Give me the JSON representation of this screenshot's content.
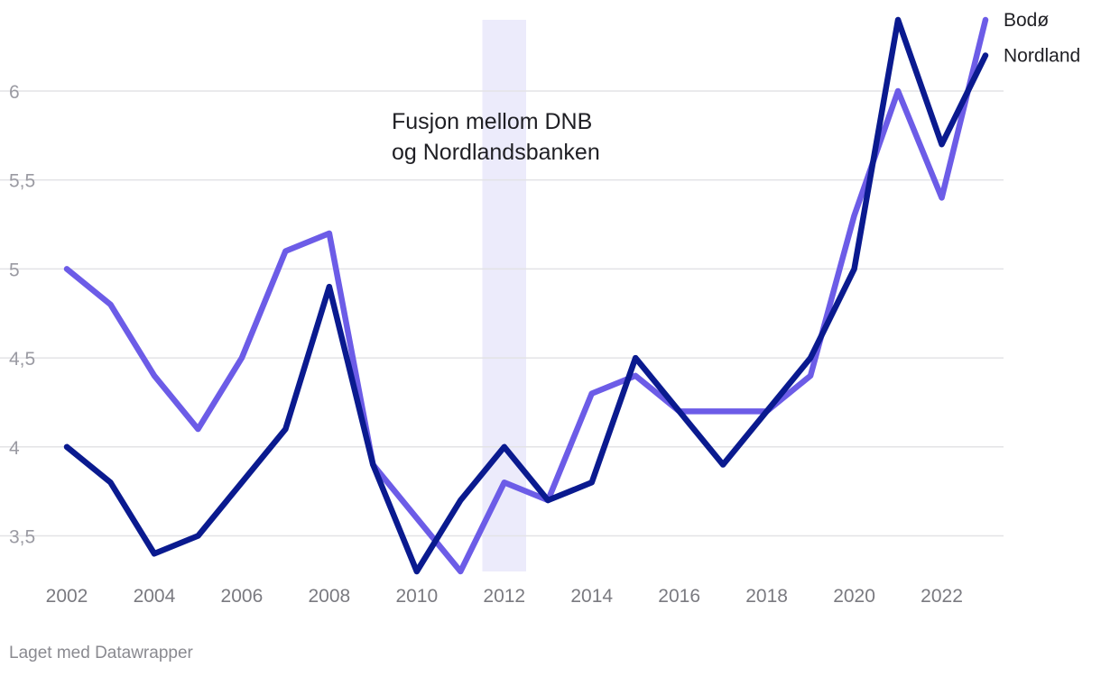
{
  "chart_data": {
    "type": "line",
    "title": "",
    "xlabel": "",
    "ylabel": "",
    "x": [
      2002,
      2003,
      2004,
      2005,
      2006,
      2007,
      2008,
      2009,
      2010,
      2011,
      2012,
      2013,
      2014,
      2015,
      2016,
      2017,
      2018,
      2019,
      2020,
      2021,
      2022,
      2023
    ],
    "x_ticks": [
      "2002",
      "2004",
      "2006",
      "2008",
      "2010",
      "2012",
      "2014",
      "2016",
      "2018",
      "2020",
      "2022"
    ],
    "y_ticks": [
      "3,5",
      "4",
      "4,5",
      "5",
      "5,5",
      "6"
    ],
    "y_tick_values": [
      3.5,
      4,
      4.5,
      5,
      5.5,
      6
    ],
    "ylim": [
      3.3,
      6.4
    ],
    "xlim": [
      2002,
      2023
    ],
    "grid": true,
    "series": [
      {
        "name": "Bodø",
        "color": "#6c5ce7",
        "values": [
          5.0,
          4.8,
          4.4,
          4.1,
          4.5,
          5.1,
          5.2,
          3.9,
          3.6,
          3.3,
          3.8,
          3.7,
          4.3,
          4.4,
          4.2,
          4.2,
          4.2,
          4.4,
          5.3,
          6.0,
          5.4,
          6.4
        ]
      },
      {
        "name": "Nordland",
        "color": "#0a1a8f",
        "values": [
          4.0,
          3.8,
          3.4,
          3.5,
          3.8,
          4.1,
          4.9,
          3.9,
          3.3,
          3.7,
          4.0,
          3.7,
          3.8,
          4.5,
          4.2,
          3.9,
          4.2,
          4.5,
          5.0,
          6.4,
          5.7,
          6.2
        ]
      }
    ],
    "annotation": {
      "text_lines": [
        "Fusjon mellom DNB",
        "og Nordlandsbanken"
      ],
      "band_center_year": 2012,
      "band_half_width_years": 0.5,
      "band_color": "#ecebfb"
    }
  },
  "footer": {
    "credit": "Laget med Datawrapper"
  }
}
